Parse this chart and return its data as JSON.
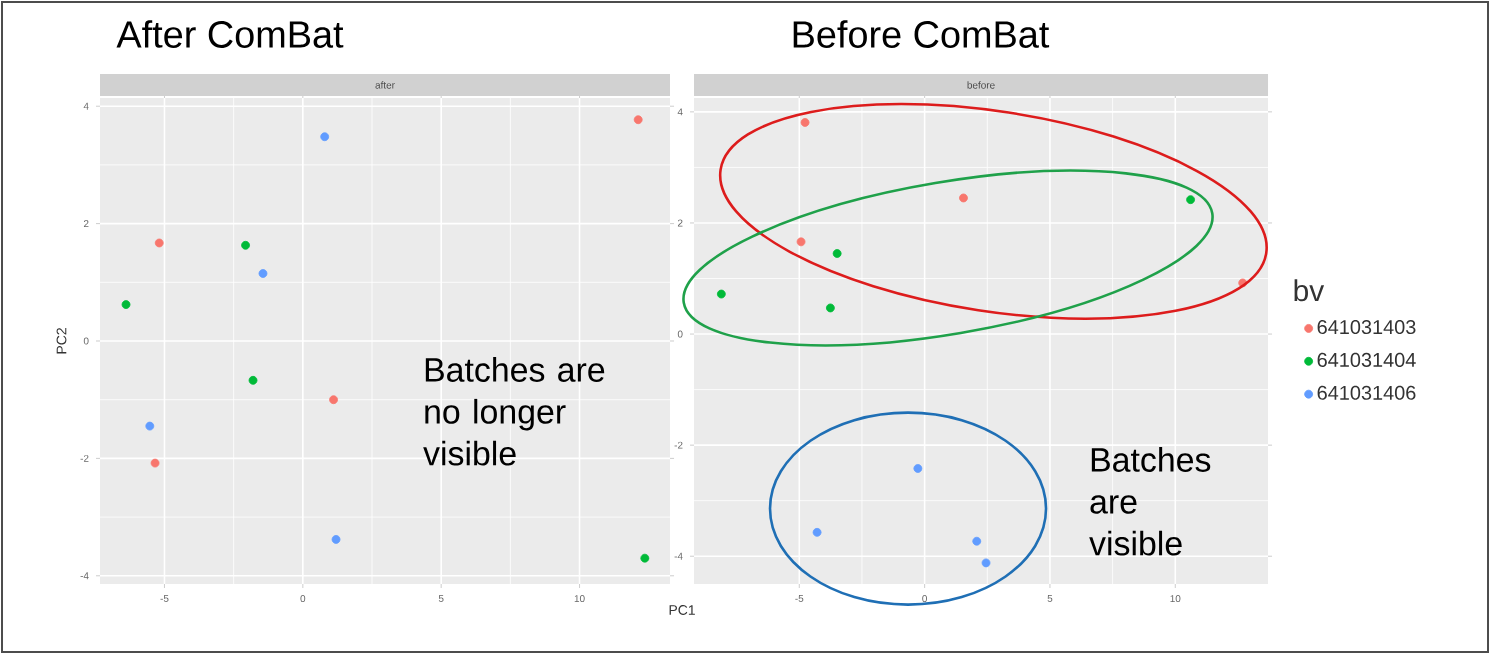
{
  "chart_data": [
    {
      "type": "scatter",
      "title": "After ComBat",
      "subtitle": "after",
      "xlabel": "PC1",
      "ylabel": "PC2",
      "annotations": [
        "Batches are no longer visible"
      ],
      "xlim": [
        -7.33,
        13.27
      ],
      "ylim": [
        -4.14,
        4.14
      ],
      "xticks": [
        -5,
        0,
        5,
        10
      ],
      "yticks": [
        -4,
        -2,
        0,
        2,
        4
      ],
      "grid": true,
      "series": [
        {
          "color": "#f8766d",
          "x": [
            12.12,
            -5.19,
            1.11,
            -5.34
          ],
          "values": [
            3.77,
            1.67,
            -1.0,
            -2.08
          ]
        },
        {
          "color": "#00ba38",
          "x": [
            -2.07,
            -6.39,
            -1.8,
            12.36
          ],
          "values": [
            1.63,
            0.62,
            -0.67,
            -3.7
          ]
        },
        {
          "color": "#619cff",
          "x": [
            0.79,
            -1.44,
            -5.53,
            1.2
          ],
          "values": [
            3.48,
            1.15,
            -1.45,
            -3.38
          ]
        }
      ]
    },
    {
      "type": "scatter",
      "title": "Before ComBat",
      "subtitle": "before",
      "annotations": [
        "Batches are visible"
      ],
      "xlim": [
        -9.2,
        13.7
      ],
      "ylim": [
        -4.5,
        4.25
      ],
      "xticks": [
        -5,
        0,
        5,
        10
      ],
      "yticks": [
        -4,
        -2,
        0,
        2,
        4
      ],
      "grid": true,
      "legend": "right",
      "legend_title": "bv",
      "series": [
        {
          "name": "641031403",
          "color": "#f8766d",
          "x": [
            -4.77,
            1.55,
            -4.93,
            12.69
          ],
          "values": [
            3.81,
            2.45,
            1.66,
            0.92
          ]
        },
        {
          "name": "641031404",
          "color": "#00ba38",
          "x": [
            10.61,
            -3.49,
            -8.11,
            -3.76
          ],
          "values": [
            2.42,
            1.45,
            0.72,
            0.47
          ]
        },
        {
          "name": "641031406",
          "color": "#619cff",
          "x": [
            -0.27,
            -4.29,
            2.08,
            2.45
          ],
          "values": [
            -2.42,
            -3.57,
            -3.73,
            -4.12
          ]
        }
      ]
    }
  ]
}
